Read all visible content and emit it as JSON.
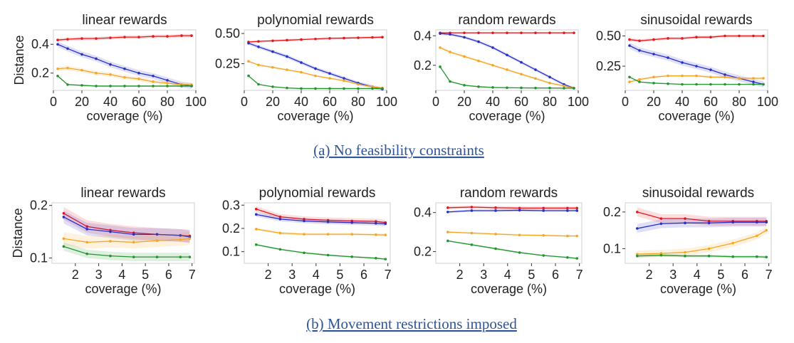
{
  "captions": {
    "a": "(a) No feasibility constraints",
    "b": "(b) Movement restrictions imposed"
  },
  "colors": {
    "red": "#e8161b",
    "blue": "#2630c9",
    "orange": "#f5a623",
    "green": "#21962d"
  },
  "chart_data": [
    {
      "type": "line",
      "row": "a",
      "title": "linear rewards",
      "xlabel": "coverage (%)",
      "ylabel": "Distance",
      "xlim": [
        0,
        100
      ],
      "ylim": [
        0.08,
        0.5
      ],
      "xticks": [
        0,
        20,
        40,
        60,
        80,
        100
      ],
      "yticks": [
        0.2,
        0.4
      ],
      "ytick_labels": [
        "0.2",
        "0.4"
      ],
      "x": [
        3,
        10,
        20,
        30,
        40,
        50,
        60,
        70,
        80,
        90,
        97
      ],
      "series": [
        {
          "name": "red",
          "color": "#e8161b",
          "band": 0.012,
          "values": [
            0.43,
            0.435,
            0.44,
            0.44,
            0.445,
            0.45,
            0.45,
            0.455,
            0.455,
            0.46,
            0.46
          ]
        },
        {
          "name": "blue",
          "color": "#2630c9",
          "band": 0.02,
          "values": [
            0.4,
            0.37,
            0.33,
            0.3,
            0.26,
            0.23,
            0.2,
            0.18,
            0.15,
            0.12,
            0.11
          ]
        },
        {
          "name": "orange",
          "color": "#f5a623",
          "band": 0.015,
          "values": [
            0.23,
            0.235,
            0.22,
            0.2,
            0.19,
            0.17,
            0.16,
            0.14,
            0.13,
            0.12,
            0.12
          ]
        },
        {
          "name": "green",
          "color": "#21962d",
          "band": 0.005,
          "values": [
            0.18,
            0.12,
            0.115,
            0.11,
            0.11,
            0.11,
            0.11,
            0.11,
            0.11,
            0.11,
            0.11
          ]
        }
      ]
    },
    {
      "type": "line",
      "row": "a",
      "title": "polynomial rewards",
      "xlabel": "coverage (%)",
      "ylabel": "",
      "xlim": [
        0,
        100
      ],
      "ylim": [
        0.03,
        0.53
      ],
      "xticks": [
        0,
        20,
        40,
        60,
        80,
        100
      ],
      "yticks": [
        0.25,
        0.5
      ],
      "ytick_labels": [
        "0.25",
        "0.50"
      ],
      "x": [
        3,
        10,
        20,
        30,
        40,
        50,
        60,
        70,
        80,
        90,
        97
      ],
      "series": [
        {
          "name": "red",
          "color": "#e8161b",
          "band": 0.01,
          "values": [
            0.43,
            0.435,
            0.44,
            0.445,
            0.45,
            0.455,
            0.46,
            0.462,
            0.465,
            0.468,
            0.47
          ]
        },
        {
          "name": "blue",
          "color": "#2630c9",
          "band": 0.015,
          "values": [
            0.42,
            0.39,
            0.35,
            0.31,
            0.26,
            0.21,
            0.17,
            0.13,
            0.09,
            0.06,
            0.04
          ]
        },
        {
          "name": "orange",
          "color": "#f5a623",
          "band": 0.008,
          "values": [
            0.27,
            0.24,
            0.22,
            0.2,
            0.18,
            0.15,
            0.13,
            0.11,
            0.08,
            0.06,
            0.05
          ]
        },
        {
          "name": "green",
          "color": "#21962d",
          "band": 0.004,
          "values": [
            0.15,
            0.08,
            0.06,
            0.05,
            0.045,
            0.045,
            0.045,
            0.045,
            0.045,
            0.045,
            0.045
          ]
        }
      ]
    },
    {
      "type": "line",
      "row": "a",
      "title": "random rewards",
      "xlabel": "coverage (%)",
      "ylabel": "",
      "xlim": [
        0,
        100
      ],
      "ylim": [
        0.03,
        0.44
      ],
      "xticks": [
        0,
        20,
        40,
        60,
        80,
        100
      ],
      "yticks": [
        0.2,
        0.4
      ],
      "ytick_labels": [
        "0.2",
        "0.4"
      ],
      "x": [
        3,
        10,
        20,
        30,
        40,
        50,
        60,
        70,
        80,
        90,
        97
      ],
      "series": [
        {
          "name": "red",
          "color": "#e8161b",
          "band": 0.006,
          "values": [
            0.42,
            0.42,
            0.42,
            0.42,
            0.42,
            0.42,
            0.42,
            0.42,
            0.42,
            0.42,
            0.42
          ]
        },
        {
          "name": "blue",
          "color": "#2630c9",
          "band": 0.01,
          "values": [
            0.415,
            0.41,
            0.39,
            0.36,
            0.32,
            0.27,
            0.22,
            0.17,
            0.12,
            0.07,
            0.045
          ]
        },
        {
          "name": "orange",
          "color": "#f5a623",
          "band": 0.008,
          "values": [
            0.32,
            0.29,
            0.26,
            0.23,
            0.2,
            0.17,
            0.14,
            0.11,
            0.08,
            0.06,
            0.045
          ]
        },
        {
          "name": "green",
          "color": "#21962d",
          "band": 0.004,
          "values": [
            0.19,
            0.09,
            0.065,
            0.055,
            0.05,
            0.048,
            0.047,
            0.046,
            0.046,
            0.045,
            0.045
          ]
        }
      ]
    },
    {
      "type": "line",
      "row": "a",
      "title": "sinusoidal rewards",
      "xlabel": "coverage (%)",
      "ylabel": "",
      "xlim": [
        0,
        100
      ],
      "ylim": [
        0.05,
        0.55
      ],
      "xticks": [
        0,
        20,
        40,
        60,
        80,
        100
      ],
      "yticks": [
        0.25,
        0.5
      ],
      "ytick_labels": [
        "0.25",
        "0.50"
      ],
      "x": [
        3,
        10,
        20,
        30,
        40,
        50,
        60,
        70,
        80,
        90,
        97
      ],
      "series": [
        {
          "name": "red",
          "color": "#e8161b",
          "band": 0.012,
          "values": [
            0.47,
            0.46,
            0.47,
            0.48,
            0.48,
            0.49,
            0.49,
            0.5,
            0.5,
            0.5,
            0.5
          ]
        },
        {
          "name": "blue",
          "color": "#2630c9",
          "band": 0.025,
          "values": [
            0.42,
            0.38,
            0.35,
            0.32,
            0.28,
            0.25,
            0.22,
            0.18,
            0.15,
            0.12,
            0.1
          ]
        },
        {
          "name": "orange",
          "color": "#f5a623",
          "band": 0.01,
          "values": [
            0.12,
            0.14,
            0.16,
            0.17,
            0.17,
            0.17,
            0.16,
            0.16,
            0.15,
            0.15,
            0.15
          ]
        },
        {
          "name": "green",
          "color": "#21962d",
          "band": 0.004,
          "values": [
            0.16,
            0.12,
            0.11,
            0.105,
            0.1,
            0.1,
            0.1,
            0.1,
            0.1,
            0.1,
            0.1
          ]
        }
      ]
    },
    {
      "type": "line",
      "row": "b",
      "title": "linear rewards",
      "xlabel": "coverage (%)",
      "ylabel": "Distance",
      "xlim": [
        1,
        7.1
      ],
      "ylim": [
        0.09,
        0.205
      ],
      "xticks": [
        2,
        3,
        4,
        5,
        6,
        7
      ],
      "yticks": [
        0.1,
        0.2
      ],
      "ytick_labels": [
        "0.1",
        "0.2"
      ],
      "x": [
        1.5,
        2.5,
        3.5,
        4.5,
        5.5,
        6.5,
        6.9
      ],
      "series": [
        {
          "name": "red",
          "color": "#e8161b",
          "band": 0.012,
          "values": [
            0.185,
            0.16,
            0.153,
            0.148,
            0.145,
            0.143,
            0.142
          ]
        },
        {
          "name": "blue",
          "color": "#2630c9",
          "band": 0.012,
          "values": [
            0.178,
            0.155,
            0.15,
            0.145,
            0.145,
            0.143,
            0.14
          ]
        },
        {
          "name": "orange",
          "color": "#f5a623",
          "band": 0.012,
          "values": [
            0.137,
            0.13,
            0.132,
            0.13,
            0.133,
            0.135,
            0.137
          ]
        },
        {
          "name": "green",
          "color": "#21962d",
          "band": 0.008,
          "values": [
            0.122,
            0.108,
            0.104,
            0.102,
            0.102,
            0.102,
            0.102
          ]
        }
      ]
    },
    {
      "type": "line",
      "row": "b",
      "title": "polynomial rewards",
      "xlabel": "coverage (%)",
      "ylabel": "",
      "xlim": [
        1,
        7.1
      ],
      "ylim": [
        0.05,
        0.31
      ],
      "xticks": [
        2,
        3,
        4,
        5,
        6,
        7
      ],
      "yticks": [
        0.1,
        0.2,
        0.3
      ],
      "ytick_labels": [
        "0.1",
        "0.2",
        "0.3"
      ],
      "x": [
        1.5,
        2.5,
        3.5,
        4.5,
        5.5,
        6.5,
        6.9
      ],
      "series": [
        {
          "name": "red",
          "color": "#e8161b",
          "band": 0.012,
          "values": [
            0.283,
            0.25,
            0.24,
            0.235,
            0.232,
            0.23,
            0.225
          ]
        },
        {
          "name": "blue",
          "color": "#2630c9",
          "band": 0.01,
          "values": [
            0.26,
            0.24,
            0.232,
            0.228,
            0.225,
            0.222,
            0.22
          ]
        },
        {
          "name": "orange",
          "color": "#f5a623",
          "band": 0.006,
          "values": [
            0.197,
            0.18,
            0.175,
            0.175,
            0.175,
            0.173,
            0.172
          ]
        },
        {
          "name": "green",
          "color": "#21962d",
          "band": 0.004,
          "values": [
            0.13,
            0.11,
            0.095,
            0.085,
            0.078,
            0.072,
            0.068
          ]
        }
      ]
    },
    {
      "type": "line",
      "row": "b",
      "title": "random rewards",
      "xlabel": "coverage (%)",
      "ylabel": "",
      "xlim": [
        1,
        7.1
      ],
      "ylim": [
        0.14,
        0.45
      ],
      "xticks": [
        2,
        3,
        4,
        5,
        6,
        7
      ],
      "yticks": [
        0.2,
        0.4
      ],
      "ytick_labels": [
        "0.2",
        "0.4"
      ],
      "x": [
        1.5,
        2.5,
        3.5,
        4.5,
        5.5,
        6.5,
        6.9
      ],
      "series": [
        {
          "name": "red",
          "color": "#e8161b",
          "band": 0.008,
          "values": [
            0.425,
            0.428,
            0.425,
            0.423,
            0.423,
            0.423,
            0.423
          ]
        },
        {
          "name": "blue",
          "color": "#2630c9",
          "band": 0.006,
          "values": [
            0.403,
            0.41,
            0.41,
            0.412,
            0.41,
            0.41,
            0.41
          ]
        },
        {
          "name": "orange",
          "color": "#f5a623",
          "band": 0.005,
          "values": [
            0.3,
            0.295,
            0.29,
            0.285,
            0.283,
            0.28,
            0.28
          ]
        },
        {
          "name": "green",
          "color": "#21962d",
          "band": 0.004,
          "values": [
            0.255,
            0.235,
            0.215,
            0.195,
            0.18,
            0.17,
            0.165
          ]
        }
      ]
    },
    {
      "type": "line",
      "row": "b",
      "title": "sinusoidal rewards",
      "xlabel": "coverage (%)",
      "ylabel": "",
      "xlim": [
        1,
        7.1
      ],
      "ylim": [
        0.06,
        0.225
      ],
      "xticks": [
        2,
        3,
        4,
        5,
        6,
        7
      ],
      "yticks": [
        0.1,
        0.2
      ],
      "ytick_labels": [
        "0.1",
        "0.2"
      ],
      "x": [
        1.5,
        2.5,
        3.5,
        4.5,
        5.5,
        6.5,
        6.9
      ],
      "series": [
        {
          "name": "red",
          "color": "#e8161b",
          "band": 0.012,
          "values": [
            0.2,
            0.182,
            0.182,
            0.175,
            0.175,
            0.175,
            0.175
          ]
        },
        {
          "name": "blue",
          "color": "#2630c9",
          "band": 0.012,
          "values": [
            0.155,
            0.168,
            0.17,
            0.17,
            0.172,
            0.172,
            0.172
          ]
        },
        {
          "name": "orange",
          "color": "#f5a623",
          "band": 0.01,
          "values": [
            0.085,
            0.087,
            0.09,
            0.1,
            0.115,
            0.135,
            0.15
          ]
        },
        {
          "name": "green",
          "color": "#21962d",
          "band": 0.004,
          "values": [
            0.08,
            0.082,
            0.08,
            0.08,
            0.078,
            0.078,
            0.077
          ]
        }
      ]
    }
  ]
}
